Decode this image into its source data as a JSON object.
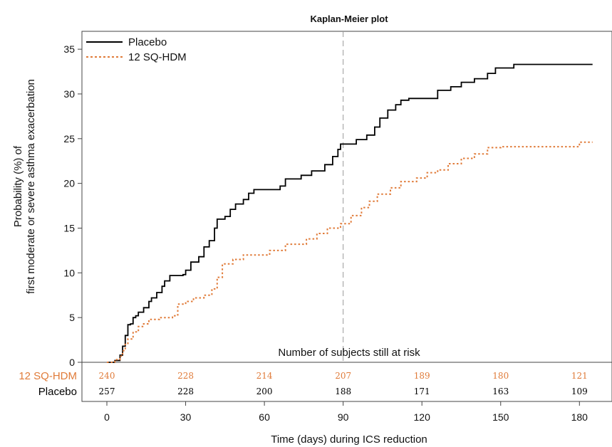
{
  "chart_data": {
    "type": "line",
    "title": "Kaplan-Meier plot",
    "xlabel": "Time (days) during ICS reduction",
    "ylabel_line1": "Probability (%) of",
    "ylabel_line2": "first moderate or severe asthma exacerbation",
    "xlim": [
      -10,
      185
    ],
    "ylim": [
      0,
      37
    ],
    "xticks": [
      0,
      30,
      60,
      90,
      120,
      150,
      180
    ],
    "yticks": [
      0,
      5,
      10,
      15,
      20,
      25,
      30,
      35
    ],
    "grid": false,
    "legend_position": "top-left",
    "reference_line_x": 90,
    "series": [
      {
        "name": "Placebo",
        "color": "#000000",
        "style": "solid",
        "points": [
          [
            0,
            0
          ],
          [
            3,
            0.2
          ],
          [
            5,
            0.8
          ],
          [
            6,
            1.8
          ],
          [
            7,
            3
          ],
          [
            8,
            4.2
          ],
          [
            9,
            4.3
          ],
          [
            10,
            5
          ],
          [
            11,
            5.2
          ],
          [
            12,
            5.6
          ],
          [
            14,
            6.1
          ],
          [
            16,
            6.8
          ],
          [
            17,
            7.2
          ],
          [
            19,
            7.8
          ],
          [
            21,
            8.5
          ],
          [
            22,
            9.1
          ],
          [
            24,
            9.7
          ],
          [
            29,
            9.8
          ],
          [
            30,
            10.3
          ],
          [
            32,
            11.2
          ],
          [
            35,
            11.8
          ],
          [
            37,
            12.9
          ],
          [
            39,
            13.6
          ],
          [
            41,
            15
          ],
          [
            42,
            16
          ],
          [
            45,
            16.3
          ],
          [
            47,
            17.1
          ],
          [
            49,
            17.7
          ],
          [
            52,
            18.2
          ],
          [
            54,
            18.9
          ],
          [
            56,
            19.3
          ],
          [
            66,
            19.7
          ],
          [
            68,
            20.5
          ],
          [
            74,
            20.9
          ],
          [
            78,
            21.4
          ],
          [
            83,
            22.1
          ],
          [
            86,
            23
          ],
          [
            88,
            23.8
          ],
          [
            89,
            24.4
          ],
          [
            95,
            24.9
          ],
          [
            99,
            25.4
          ],
          [
            102,
            26.3
          ],
          [
            104,
            27.3
          ],
          [
            107,
            28.2
          ],
          [
            110,
            28.8
          ],
          [
            112,
            29.3
          ],
          [
            115,
            29.5
          ],
          [
            126,
            30.4
          ],
          [
            131,
            30.8
          ],
          [
            135,
            31.3
          ],
          [
            140,
            31.7
          ],
          [
            145,
            32.3
          ],
          [
            148,
            32.9
          ],
          [
            155,
            33.3
          ],
          [
            185,
            33.3
          ]
        ]
      },
      {
        "name": "12 SQ-HDM",
        "color": "#E07B39",
        "style": "dotted",
        "points": [
          [
            0,
            0
          ],
          [
            3,
            0.3
          ],
          [
            5,
            0.7
          ],
          [
            6,
            1.3
          ],
          [
            7,
            2
          ],
          [
            8,
            2.6
          ],
          [
            10,
            3.4
          ],
          [
            12,
            4
          ],
          [
            14,
            4.3
          ],
          [
            16,
            4.8
          ],
          [
            20,
            5
          ],
          [
            25,
            5.2
          ],
          [
            27,
            6.5
          ],
          [
            30,
            6.8
          ],
          [
            33,
            7.2
          ],
          [
            37,
            7.5
          ],
          [
            40,
            8.2
          ],
          [
            42,
            9.5
          ],
          [
            44,
            11
          ],
          [
            48,
            11.5
          ],
          [
            52,
            12
          ],
          [
            62,
            12.5
          ],
          [
            68,
            13.2
          ],
          [
            76,
            13.8
          ],
          [
            80,
            14.4
          ],
          [
            84,
            15
          ],
          [
            89,
            15.5
          ],
          [
            93,
            16.4
          ],
          [
            97,
            17.3
          ],
          [
            100,
            18
          ],
          [
            103,
            18.8
          ],
          [
            108,
            19.5
          ],
          [
            112,
            20.2
          ],
          [
            118,
            20.6
          ],
          [
            122,
            21.2
          ],
          [
            126,
            21.5
          ],
          [
            130,
            22.2
          ],
          [
            135,
            22.8
          ],
          [
            140,
            23.3
          ],
          [
            145,
            24
          ],
          [
            150,
            24.1
          ],
          [
            180,
            24.6
          ],
          [
            185,
            24.6
          ]
        ]
      }
    ],
    "risk_table": {
      "title": "Number of subjects still at risk",
      "times": [
        0,
        30,
        60,
        90,
        120,
        150,
        180
      ],
      "rows": [
        {
          "label": "12 SQ-HDM",
          "color": "#E07B39",
          "values": [
            "240",
            "228",
            "214",
            "207",
            "189",
            "180",
            "121"
          ]
        },
        {
          "label": "Placebo",
          "color": "#000000",
          "values": [
            "257",
            "228",
            "200",
            "188",
            "171",
            "163",
            "109"
          ]
        }
      ]
    }
  }
}
